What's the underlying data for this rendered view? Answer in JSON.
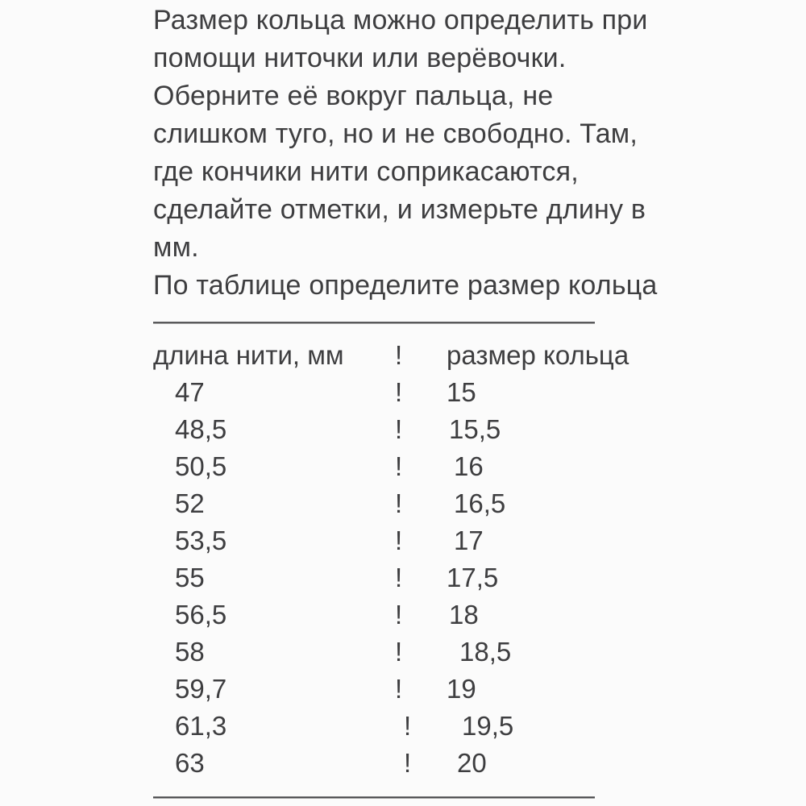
{
  "page": {
    "background": "#fbfbfb",
    "text_color": "#3e3e40"
  },
  "intro": {
    "lines": [
      "Размер кольца можно определить при",
      "помощи ниточки или верёвочки.",
      "Оберните её вокруг пальца, не",
      "слишком туго, но и не свободно. Там,",
      "где кончики нити соприкасаются,",
      "сделайте отметки, и измерьте длину в",
      "мм.",
      "По таблице определите размер кольца"
    ]
  },
  "divider": "—————————————————",
  "table": {
    "header": {
      "col1": "длина нити, мм",
      "separator": "!",
      "col2": "размер кольца"
    },
    "rows": [
      {
        "length": "47",
        "separator": "!",
        "size": "15"
      },
      {
        "length": "48,5",
        "separator": "!",
        "size": "15,5"
      },
      {
        "length": "50,5",
        "separator": "!",
        "size": "16"
      },
      {
        "length": "52",
        "separator": "!",
        "size": "16,5"
      },
      {
        "length": "53,5",
        "separator": "!",
        "size": "17"
      },
      {
        "length": "55",
        "separator": "!",
        "size": "17,5"
      },
      {
        "length": "56,5",
        "separator": "!",
        "size": "18"
      },
      {
        "length": "58",
        "separator": "!",
        "size": "18,5"
      },
      {
        "length": "59,7",
        "separator": "!",
        "size": "19"
      },
      {
        "length": "61,3",
        "separator": "!",
        "size": "19,5"
      },
      {
        "length": "63",
        "separator": "!",
        "size": "20"
      }
    ]
  }
}
